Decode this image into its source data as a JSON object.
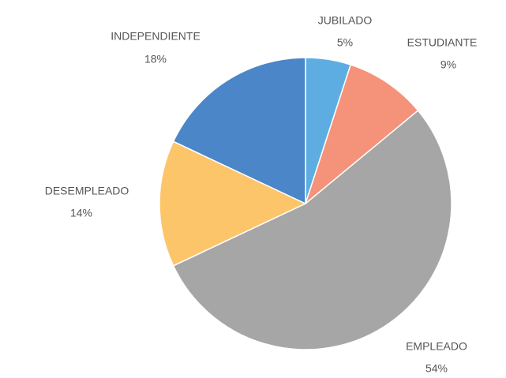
{
  "chart_data": {
    "type": "pie",
    "categories": [
      "JUBILADO",
      "ESTUDIANTE",
      "EMPLEADO",
      "DESEMPLEADO",
      "INDEPENDIENTE"
    ],
    "values": [
      5,
      9,
      54,
      14,
      18
    ],
    "value_labels": [
      "5%",
      "9%",
      "54%",
      "14%",
      "18%"
    ],
    "colors": [
      "#5dade2",
      "#f4937a",
      "#a6a6a6",
      "#fdc56a",
      "#4a86c8"
    ]
  }
}
